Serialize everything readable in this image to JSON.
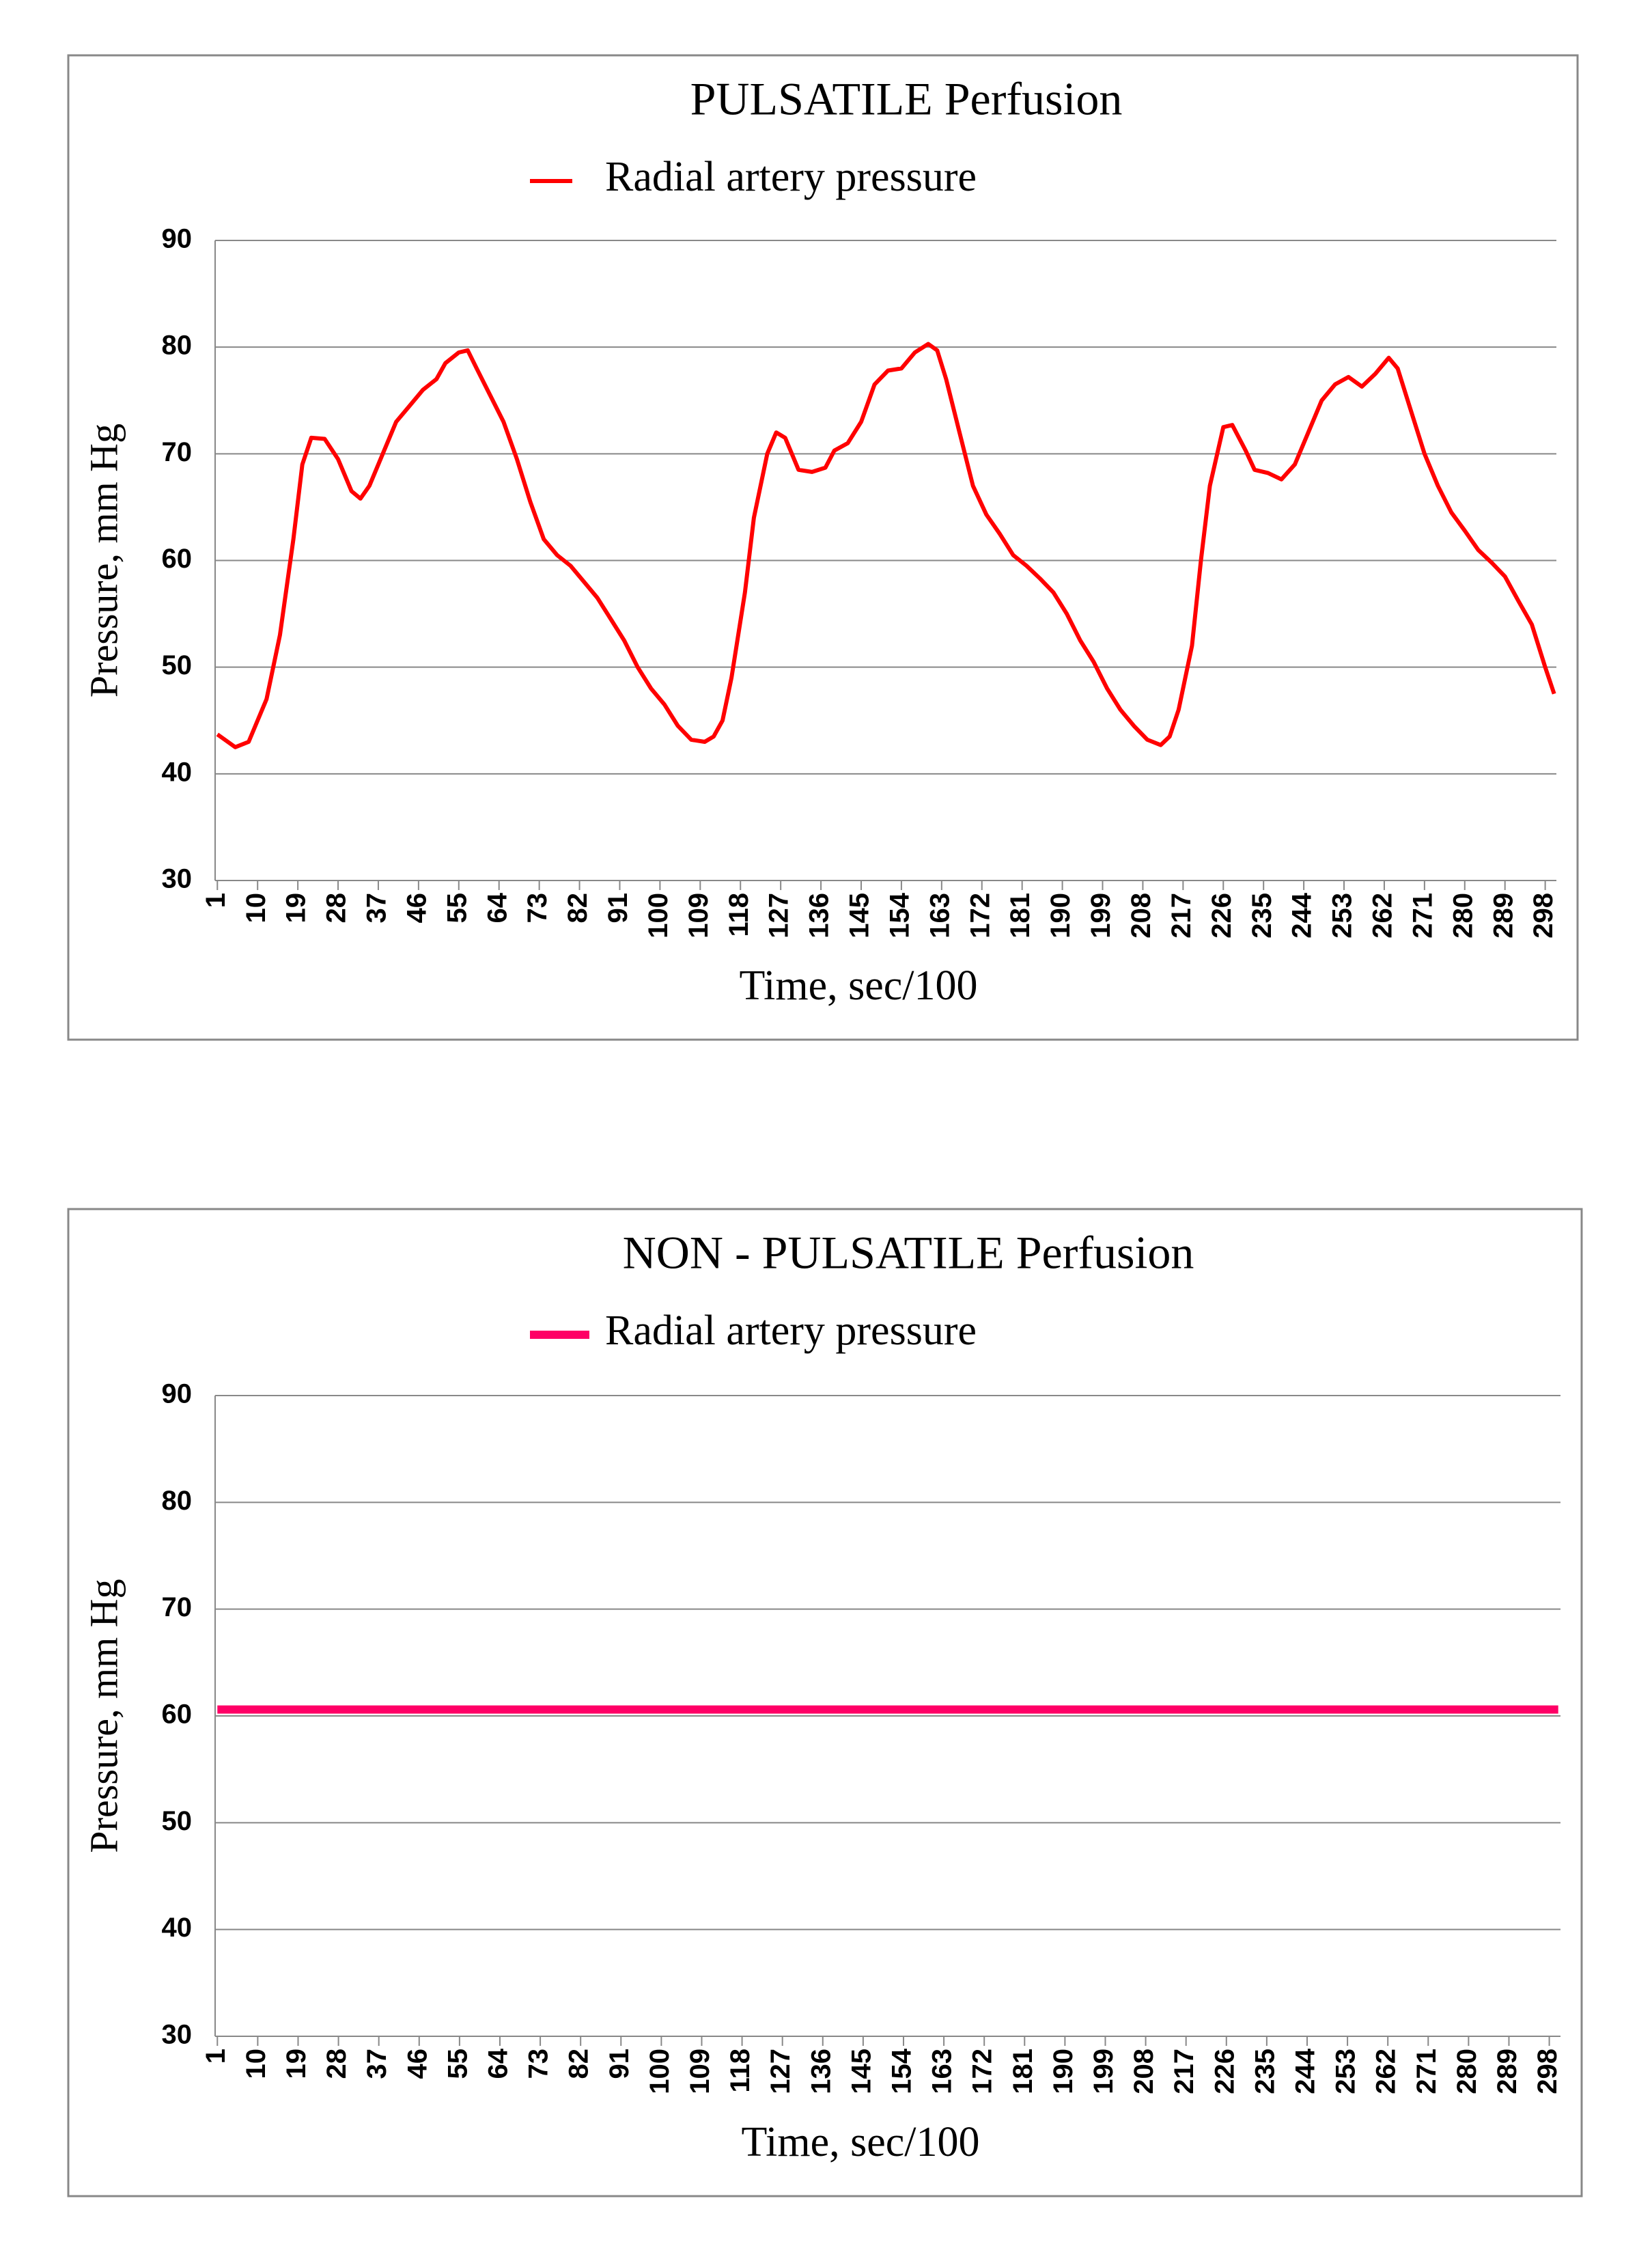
{
  "chart_data": [
    {
      "type": "line",
      "title": "PULSATILE Perfusion",
      "x_label": "Time, sec/100",
      "y_label": "Pressure, mm Hg",
      "xlim": [
        0.5,
        300.5
      ],
      "ylim": [
        30,
        90
      ],
      "yticks": [
        30,
        40,
        50,
        60,
        70,
        80,
        90
      ],
      "xticks": [
        1,
        10,
        19,
        28,
        37,
        46,
        55,
        64,
        73,
        82,
        91,
        100,
        109,
        118,
        127,
        136,
        145,
        154,
        163,
        172,
        181,
        190,
        199,
        208,
        217,
        226,
        235,
        244,
        253,
        262,
        271,
        280,
        289,
        298
      ],
      "grid": true,
      "line_width": 6,
      "x": [
        1,
        5,
        8,
        12,
        15,
        18,
        20,
        22,
        25,
        28,
        31,
        33,
        35,
        38,
        41,
        44,
        47,
        50,
        52,
        55,
        57,
        59,
        62,
        65,
        68,
        71,
        74,
        77,
        80,
        83,
        86,
        89,
        92,
        95,
        98,
        101,
        104,
        107,
        110,
        112,
        114,
        116,
        119,
        121,
        124,
        126,
        128,
        131,
        134,
        137,
        139,
        142,
        145,
        148,
        151,
        154,
        157,
        160,
        162,
        164,
        167,
        170,
        173,
        176,
        179,
        182,
        185,
        188,
        191,
        194,
        197,
        200,
        203,
        206,
        209,
        212,
        214,
        216,
        219,
        221,
        223,
        226,
        228,
        231,
        233,
        236,
        239,
        242,
        245,
        248,
        251,
        254,
        257,
        260,
        263,
        265,
        268,
        271,
        274,
        277,
        280,
        283,
        286,
        289,
        292,
        295,
        298,
        300
      ],
      "series": [
        {
          "name": "Radial artery pressure",
          "color": "#ff0000",
          "values": [
            43.7,
            42.5,
            43,
            47,
            53,
            62,
            69,
            71.5,
            71.4,
            69.5,
            66.5,
            65.8,
            67,
            70,
            73,
            74.5,
            76,
            77,
            78.5,
            79.5,
            79.7,
            78,
            75.5,
            73,
            69.5,
            65.5,
            62,
            60.5,
            59.5,
            58,
            56.5,
            54.5,
            52.5,
            50,
            48,
            46.5,
            44.5,
            43.2,
            43,
            43.5,
            45,
            49,
            57,
            64,
            70,
            72,
            71.5,
            68.5,
            68.3,
            68.7,
            70.3,
            71,
            73,
            76.5,
            77.8,
            78,
            79.5,
            80.3,
            79.7,
            77,
            72,
            67,
            64.3,
            62.5,
            60.5,
            59.5,
            58.3,
            57,
            55,
            52.5,
            50.5,
            48,
            46,
            44.5,
            43.2,
            42.7,
            43.5,
            46,
            52,
            60,
            67,
            72.5,
            72.7,
            70.3,
            68.5,
            68.2,
            67.6,
            69,
            72,
            75,
            76.5,
            77.2,
            76.3,
            77.5,
            79,
            78,
            74,
            70,
            67,
            64.5,
            62.8,
            61,
            59.8,
            58.5,
            56.2,
            54,
            50,
            47.5
          ]
        }
      ]
    },
    {
      "type": "line",
      "title": "NON - PULSATILE Perfusion",
      "x_label": "Time, sec/100",
      "y_label": "Pressure, mm Hg",
      "xlim": [
        0.5,
        300.5
      ],
      "ylim": [
        30,
        90
      ],
      "yticks": [
        30,
        40,
        50,
        60,
        70,
        80,
        90
      ],
      "xticks": [
        1,
        10,
        19,
        28,
        37,
        46,
        55,
        64,
        73,
        82,
        91,
        100,
        109,
        118,
        127,
        136,
        145,
        154,
        163,
        172,
        181,
        190,
        199,
        208,
        217,
        226,
        235,
        244,
        253,
        262,
        271,
        280,
        289,
        298
      ],
      "grid": true,
      "line_width": 12,
      "x": [
        1,
        300
      ],
      "series": [
        {
          "name": "Radial artery pressure",
          "color": "#ff0066",
          "values": [
            60.6,
            60.6
          ]
        }
      ]
    }
  ]
}
